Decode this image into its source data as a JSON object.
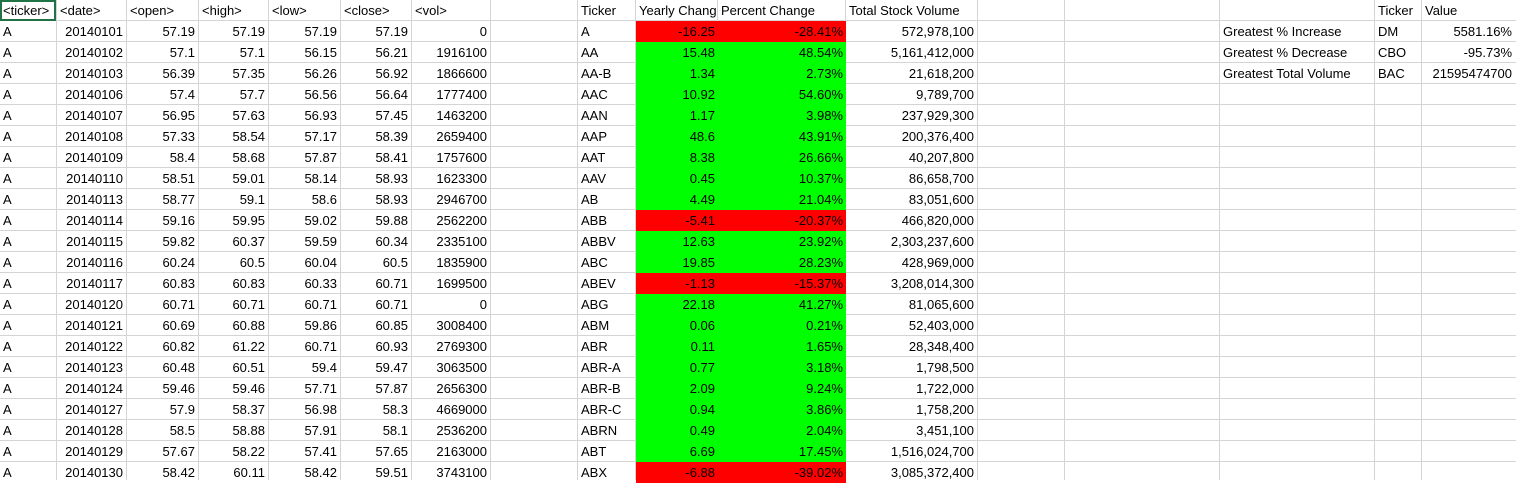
{
  "colors": {
    "positive": "#00ff00",
    "negative": "#ff0000",
    "selection": "#217346",
    "gridline": "#d4d4d4"
  },
  "raw_headers": [
    "<ticker>",
    "<date>",
    "<open>",
    "<high>",
    "<low>",
    "<close>",
    "<vol>"
  ],
  "raw_rows": [
    [
      "A",
      "20140101",
      "57.19",
      "57.19",
      "57.19",
      "57.19",
      "0"
    ],
    [
      "A",
      "20140102",
      "57.1",
      "57.1",
      "56.15",
      "56.21",
      "1916100"
    ],
    [
      "A",
      "20140103",
      "56.39",
      "57.35",
      "56.26",
      "56.92",
      "1866600"
    ],
    [
      "A",
      "20140106",
      "57.4",
      "57.7",
      "56.56",
      "56.64",
      "1777400"
    ],
    [
      "A",
      "20140107",
      "56.95",
      "57.63",
      "56.93",
      "57.45",
      "1463200"
    ],
    [
      "A",
      "20140108",
      "57.33",
      "58.54",
      "57.17",
      "58.39",
      "2659400"
    ],
    [
      "A",
      "20140109",
      "58.4",
      "58.68",
      "57.87",
      "58.41",
      "1757600"
    ],
    [
      "A",
      "20140110",
      "58.51",
      "59.01",
      "58.14",
      "58.93",
      "1623300"
    ],
    [
      "A",
      "20140113",
      "58.77",
      "59.1",
      "58.6",
      "58.93",
      "2946700"
    ],
    [
      "A",
      "20140114",
      "59.16",
      "59.95",
      "59.02",
      "59.88",
      "2562200"
    ],
    [
      "A",
      "20140115",
      "59.82",
      "60.37",
      "59.59",
      "60.34",
      "2335100"
    ],
    [
      "A",
      "20140116",
      "60.24",
      "60.5",
      "60.04",
      "60.5",
      "1835900"
    ],
    [
      "A",
      "20140117",
      "60.83",
      "60.83",
      "60.33",
      "60.71",
      "1699500"
    ],
    [
      "A",
      "20140120",
      "60.71",
      "60.71",
      "60.71",
      "60.71",
      "0"
    ],
    [
      "A",
      "20140121",
      "60.69",
      "60.88",
      "59.86",
      "60.85",
      "3008400"
    ],
    [
      "A",
      "20140122",
      "60.82",
      "61.22",
      "60.71",
      "60.93",
      "2769300"
    ],
    [
      "A",
      "20140123",
      "60.48",
      "60.51",
      "59.4",
      "59.47",
      "3063500"
    ],
    [
      "A",
      "20140124",
      "59.46",
      "59.46",
      "57.71",
      "57.87",
      "2656300"
    ],
    [
      "A",
      "20140127",
      "57.9",
      "58.37",
      "56.98",
      "58.3",
      "4669000"
    ],
    [
      "A",
      "20140128",
      "58.5",
      "58.88",
      "57.91",
      "58.1",
      "2536200"
    ],
    [
      "A",
      "20140129",
      "57.67",
      "58.22",
      "57.41",
      "57.65",
      "2163000"
    ],
    [
      "A",
      "20140130",
      "58.42",
      "60.11",
      "58.42",
      "59.51",
      "3743100"
    ]
  ],
  "summary_headers": [
    "Ticker",
    "Yearly Change",
    "Percent Change",
    "Total Stock Volume"
  ],
  "summary_rows": [
    {
      "ticker": "A",
      "change": "-16.25",
      "pct": "-28.41%",
      "volume": "572,978,100",
      "sign": "negative"
    },
    {
      "ticker": "AA",
      "change": "15.48",
      "pct": "48.54%",
      "volume": "5,161,412,000",
      "sign": "positive"
    },
    {
      "ticker": "AA-B",
      "change": "1.34",
      "pct": "2.73%",
      "volume": "21,618,200",
      "sign": "positive"
    },
    {
      "ticker": "AAC",
      "change": "10.92",
      "pct": "54.60%",
      "volume": "9,789,700",
      "sign": "positive"
    },
    {
      "ticker": "AAN",
      "change": "1.17",
      "pct": "3.98%",
      "volume": "237,929,300",
      "sign": "positive"
    },
    {
      "ticker": "AAP",
      "change": "48.6",
      "pct": "43.91%",
      "volume": "200,376,400",
      "sign": "positive"
    },
    {
      "ticker": "AAT",
      "change": "8.38",
      "pct": "26.66%",
      "volume": "40,207,800",
      "sign": "positive"
    },
    {
      "ticker": "AAV",
      "change": "0.45",
      "pct": "10.37%",
      "volume": "86,658,700",
      "sign": "positive"
    },
    {
      "ticker": "AB",
      "change": "4.49",
      "pct": "21.04%",
      "volume": "83,051,600",
      "sign": "positive"
    },
    {
      "ticker": "ABB",
      "change": "-5.41",
      "pct": "-20.37%",
      "volume": "466,820,000",
      "sign": "negative"
    },
    {
      "ticker": "ABBV",
      "change": "12.63",
      "pct": "23.92%",
      "volume": "2,303,237,600",
      "sign": "positive"
    },
    {
      "ticker": "ABC",
      "change": "19.85",
      "pct": "28.23%",
      "volume": "428,969,000",
      "sign": "positive"
    },
    {
      "ticker": "ABEV",
      "change": "-1.13",
      "pct": "-15.37%",
      "volume": "3,208,014,300",
      "sign": "negative"
    },
    {
      "ticker": "ABG",
      "change": "22.18",
      "pct": "41.27%",
      "volume": "81,065,600",
      "sign": "positive"
    },
    {
      "ticker": "ABM",
      "change": "0.06",
      "pct": "0.21%",
      "volume": "52,403,000",
      "sign": "positive"
    },
    {
      "ticker": "ABR",
      "change": "0.11",
      "pct": "1.65%",
      "volume": "28,348,400",
      "sign": "positive"
    },
    {
      "ticker": "ABR-A",
      "change": "0.77",
      "pct": "3.18%",
      "volume": "1,798,500",
      "sign": "positive"
    },
    {
      "ticker": "ABR-B",
      "change": "2.09",
      "pct": "9.24%",
      "volume": "1,722,000",
      "sign": "positive"
    },
    {
      "ticker": "ABR-C",
      "change": "0.94",
      "pct": "3.86%",
      "volume": "1,758,200",
      "sign": "positive"
    },
    {
      "ticker": "ABRN",
      "change": "0.49",
      "pct": "2.04%",
      "volume": "3,451,100",
      "sign": "positive"
    },
    {
      "ticker": "ABT",
      "change": "6.69",
      "pct": "17.45%",
      "volume": "1,516,024,700",
      "sign": "positive"
    },
    {
      "ticker": "ABX",
      "change": "-6.88",
      "pct": "-39.02%",
      "volume": "3,085,372,400",
      "sign": "negative"
    }
  ],
  "greatest_headers": [
    "Ticker",
    "Value"
  ],
  "greatest_rows": [
    {
      "label": "Greatest % Increase",
      "ticker": "DM",
      "value": "5581.16%"
    },
    {
      "label": "Greatest % Decrease",
      "ticker": "CBO",
      "value": "-95.73%"
    },
    {
      "label": "Greatest Total Volume",
      "ticker": "BAC",
      "value": "21595474700"
    }
  ]
}
